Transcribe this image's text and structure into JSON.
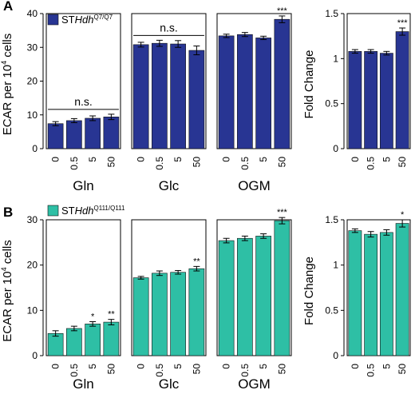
{
  "panels": [
    {
      "label": "A",
      "color": "#283593",
      "legend": {
        "prefix": "ST",
        "gene": "Hdh",
        "sup": "Q7/Q7"
      },
      "ylabel_left": {
        "pre": "ECAR per 10",
        "sup": "4",
        "post": " cells"
      },
      "ylabel_right": "Fold Change"
    },
    {
      "label": "B",
      "color": "#2EBFA5",
      "legend": {
        "prefix": "ST",
        "gene": "Hdh",
        "sup": "Q111/Q111"
      },
      "ylabel_left": {
        "pre": "ECAR per 10",
        "sup": "4",
        "post": " cells"
      },
      "ylabel_right": "Fold Change"
    }
  ],
  "chart_data": [
    {
      "type": "bar",
      "panel": "A-left",
      "categories": [
        "0",
        "0.5",
        "5",
        "50"
      ],
      "groups": [
        {
          "name": "Gln",
          "values": [
            7.4,
            8.3,
            9.0,
            9.4
          ],
          "errors": [
            0.6,
            0.6,
            0.7,
            0.8
          ],
          "marks": [
            "",
            "",
            "",
            ""
          ],
          "bracket": "n.s."
        },
        {
          "name": "Glc",
          "values": [
            30.8,
            31.2,
            31.0,
            29.1
          ],
          "errors": [
            0.7,
            0.9,
            1.0,
            1.3
          ],
          "marks": [
            "",
            "",
            "",
            ""
          ],
          "bracket": "n.s."
        },
        {
          "name": "OGM",
          "values": [
            33.4,
            33.8,
            32.8,
            38.3
          ],
          "errors": [
            0.5,
            0.6,
            0.5,
            1.0
          ],
          "marks": [
            "",
            "",
            "",
            "***"
          ],
          "bracket": ""
        }
      ],
      "ylim": [
        0,
        40
      ],
      "yticks": [
        0,
        10,
        20,
        30,
        40
      ]
    },
    {
      "type": "bar",
      "panel": "A-right",
      "categories": [
        "0",
        "0.5",
        "5",
        "50"
      ],
      "values": [
        1.08,
        1.08,
        1.06,
        1.3
      ],
      "errors": [
        0.02,
        0.02,
        0.02,
        0.04
      ],
      "marks": [
        "",
        "",
        "",
        "***"
      ],
      "ylim": [
        0,
        1.5
      ],
      "yticks": [
        "0",
        "0.5",
        "1",
        "1.5"
      ]
    },
    {
      "type": "bar",
      "panel": "B-left",
      "categories": [
        "0",
        "0.5",
        "5",
        "50"
      ],
      "groups": [
        {
          "name": "Gln",
          "values": [
            4.9,
            6.0,
            7.0,
            7.4
          ],
          "errors": [
            0.6,
            0.5,
            0.5,
            0.6
          ],
          "marks": [
            "",
            "",
            "*",
            "**"
          ],
          "bracket": ""
        },
        {
          "name": "Glc",
          "values": [
            17.2,
            18.2,
            18.4,
            19.2
          ],
          "errors": [
            0.3,
            0.5,
            0.4,
            0.5
          ],
          "marks": [
            "",
            "",
            "",
            "**"
          ],
          "bracket": ""
        },
        {
          "name": "OGM",
          "values": [
            25.4,
            25.9,
            26.4,
            29.8
          ],
          "errors": [
            0.5,
            0.5,
            0.5,
            0.7
          ],
          "marks": [
            "",
            "",
            "",
            "***"
          ],
          "bracket": ""
        }
      ],
      "ylim": [
        0,
        30
      ],
      "yticks": [
        0,
        10,
        20,
        30
      ]
    },
    {
      "type": "bar",
      "panel": "B-right",
      "categories": [
        "0",
        "0.5",
        "5",
        "50"
      ],
      "values": [
        1.38,
        1.34,
        1.36,
        1.46
      ],
      "errors": [
        0.02,
        0.03,
        0.03,
        0.04
      ],
      "marks": [
        "",
        "",
        "",
        "*"
      ],
      "ylim": [
        0,
        1.5
      ],
      "yticks": [
        "0",
        "0.5",
        "1",
        "1.5"
      ]
    }
  ]
}
